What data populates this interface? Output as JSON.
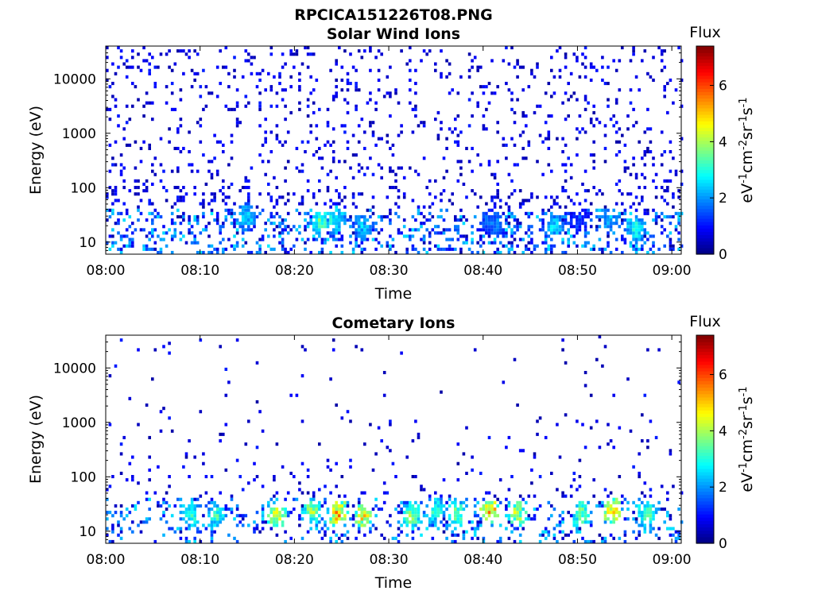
{
  "figure": {
    "title": "RPCICA151226T08.PNG"
  },
  "colorbar": {
    "title": "Flux",
    "label_parts": [
      "eV",
      "-1",
      "cm",
      "-2",
      "sr",
      "-1",
      "s",
      "-1"
    ],
    "range": [
      0,
      7.4
    ],
    "ticks": [
      "0",
      "2",
      "4",
      "6"
    ],
    "tick_values": [
      0,
      2,
      4,
      6
    ],
    "colormap": "jet"
  },
  "chart_data": [
    {
      "type": "heatmap",
      "title": "Solar Wind Ions",
      "xlabel": "Time",
      "ylabel": "Energy (eV)",
      "yscale": "log",
      "xlim": [
        "08:00",
        "09:01"
      ],
      "ylim": [
        6,
        40000
      ],
      "x_ticks": [
        "08:00",
        "08:10",
        "08:20",
        "08:30",
        "08:40",
        "08:50",
        "09:00"
      ],
      "y_ticks": [
        "10",
        "100",
        "1000",
        "10000"
      ],
      "y_tick_values": [
        10,
        100,
        1000,
        10000
      ],
      "hotspots": [
        {
          "t": 14.8,
          "e": 28,
          "v": 2.8
        },
        {
          "t": 22.6,
          "e": 22,
          "v": 3.6
        },
        {
          "t": 24.2,
          "e": 24,
          "v": 3.4
        },
        {
          "t": 27.1,
          "e": 18,
          "v": 2.6
        },
        {
          "t": 40.3,
          "e": 24,
          "v": 1.8
        },
        {
          "t": 41.2,
          "e": 20,
          "v": 2.2
        },
        {
          "t": 47.3,
          "e": 18,
          "v": 2.8
        },
        {
          "t": 50.1,
          "e": 24,
          "v": 1.6
        },
        {
          "t": 53.3,
          "e": 24,
          "v": 2.6
        },
        {
          "t": 56.0,
          "e": 16,
          "v": 3.2
        }
      ],
      "background_density": "sparse high-energy counts 100–20000 eV, denser 6–100 eV",
      "grid": false
    },
    {
      "type": "heatmap",
      "title": "Cometary Ions",
      "xlabel": "Time",
      "ylabel": "Energy (eV)",
      "yscale": "log",
      "xlim": [
        "08:00",
        "09:01"
      ],
      "ylim": [
        6,
        40000
      ],
      "x_ticks": [
        "08:00",
        "08:10",
        "08:20",
        "08:30",
        "08:40",
        "08:50",
        "09:00"
      ],
      "y_ticks": [
        "10",
        "100",
        "1000",
        "10000"
      ],
      "y_tick_values": [
        10,
        100,
        1000,
        10000
      ],
      "hotspots": [
        {
          "t": 8.9,
          "e": 20,
          "v": 3.6
        },
        {
          "t": 11.6,
          "e": 18,
          "v": 3.4
        },
        {
          "t": 18.0,
          "e": 18,
          "v": 4.6
        },
        {
          "t": 21.7,
          "e": 22,
          "v": 4.2
        },
        {
          "t": 24.5,
          "e": 20,
          "v": 5.6
        },
        {
          "t": 27.2,
          "e": 18,
          "v": 5.2
        },
        {
          "t": 32.3,
          "e": 18,
          "v": 4.0
        },
        {
          "t": 34.8,
          "e": 22,
          "v": 3.4
        },
        {
          "t": 37.1,
          "e": 20,
          "v": 3.8
        },
        {
          "t": 40.6,
          "e": 22,
          "v": 5.8
        },
        {
          "t": 43.5,
          "e": 20,
          "v": 4.4
        },
        {
          "t": 50.3,
          "e": 20,
          "v": 4.0
        },
        {
          "t": 53.5,
          "e": 22,
          "v": 5.4
        },
        {
          "t": 57.2,
          "e": 20,
          "v": 3.8
        }
      ],
      "background_density": "very sparse 100–10000 eV, structured bands 6–50 eV",
      "grid": false
    }
  ]
}
